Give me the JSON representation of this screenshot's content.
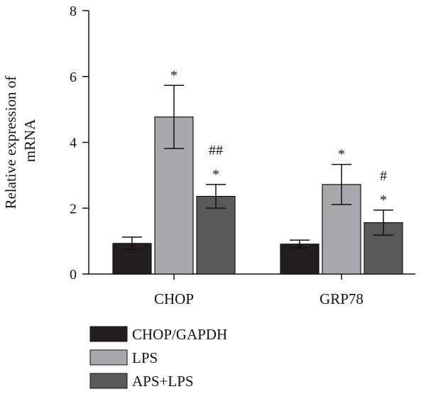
{
  "chart_data": {
    "type": "bar",
    "ylabel": [
      "Relative expression of",
      "mRNA"
    ],
    "ylim": [
      0,
      8
    ],
    "yticks": [
      0,
      2,
      4,
      6,
      8
    ],
    "categories": [
      "CHOP",
      "GRP78"
    ],
    "series": [
      {
        "name": "CHOP/GAPDH",
        "color": "#231f20",
        "values": [
          0.93,
          0.91
        ],
        "errors": [
          0.19,
          0.12
        ]
      },
      {
        "name": "LPS",
        "color": "#a6a8ab",
        "values": [
          4.77,
          2.72
        ],
        "errors": [
          0.96,
          0.61
        ]
      },
      {
        "name": "APS+LPS",
        "color": "#58595b",
        "values": [
          2.36,
          1.56
        ],
        "errors": [
          0.36,
          0.38
        ]
      }
    ],
    "annotations": [
      {
        "category": 0,
        "series": 1,
        "lines": [
          "*"
        ]
      },
      {
        "category": 0,
        "series": 2,
        "lines": [
          "##",
          "*"
        ]
      },
      {
        "category": 1,
        "series": 1,
        "lines": [
          "*"
        ]
      },
      {
        "category": 1,
        "series": 2,
        "lines": [
          "#",
          "*"
        ]
      }
    ],
    "legend_position": "bottom-left",
    "grid": false
  }
}
